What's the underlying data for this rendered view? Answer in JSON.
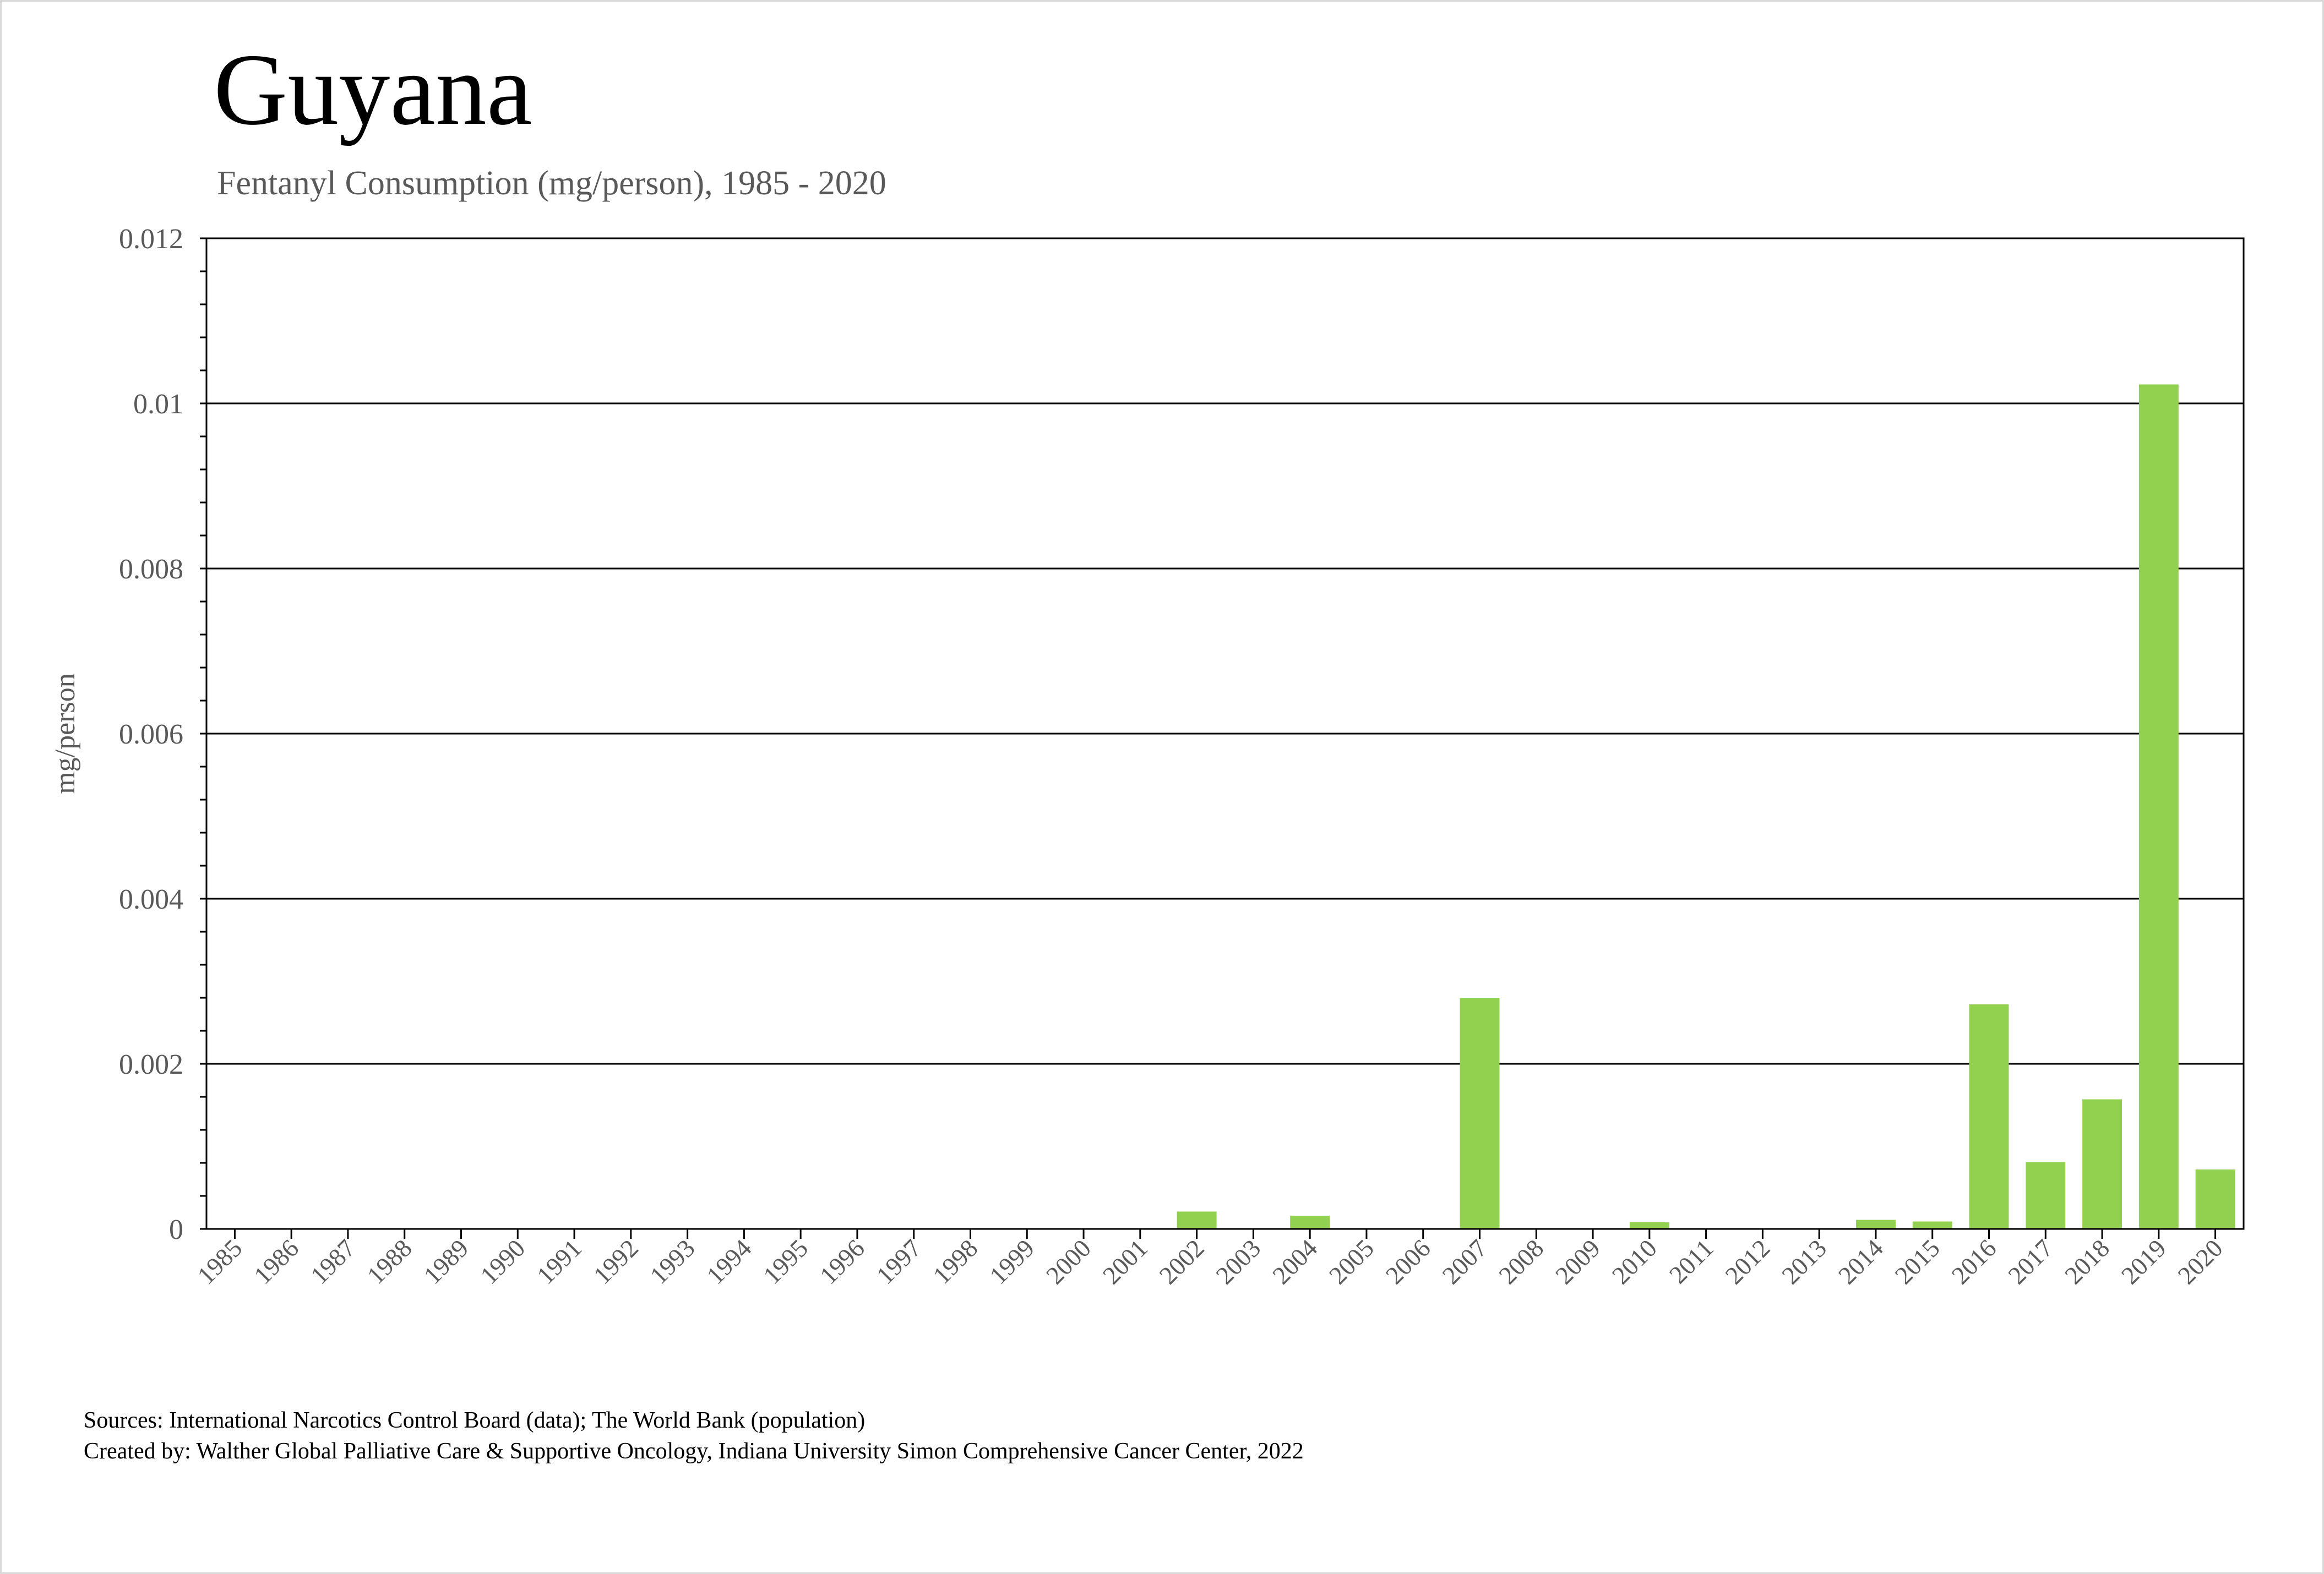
{
  "header": {
    "title": "Guyana",
    "subtitle": "Fentanyl Consumption (mg/person), 1985 - 2020"
  },
  "footer": {
    "sources": "Sources: International Narcotics Control Board (data); The World Bank (population)",
    "created_by": "Created by: Walther Global Palliative Care & Supportive Oncology, Indiana University Simon Comprehensive Cancer Center, 2022"
  },
  "colors": {
    "bar": "#92d050",
    "grid": "#000000",
    "axis_text": "#595959"
  },
  "chart_data": {
    "type": "bar",
    "title": "Guyana",
    "subtitle": "Fentanyl Consumption (mg/person), 1985 - 2020",
    "xlabel": "",
    "ylabel": "mg/person",
    "ylim": [
      0,
      0.012
    ],
    "yticks": [
      0,
      0.002,
      0.004,
      0.006,
      0.008,
      0.01,
      0.012
    ],
    "ytick_labels": [
      "0",
      "0.002",
      "0.004",
      "0.006",
      "0.008",
      "0.01",
      "0.012"
    ],
    "grid": true,
    "legend": "none",
    "categories": [
      "1985",
      "1986",
      "1987",
      "1988",
      "1989",
      "1990",
      "1991",
      "1992",
      "1993",
      "1994",
      "1995",
      "1996",
      "1997",
      "1998",
      "1999",
      "2000",
      "2001",
      "2002",
      "2003",
      "2004",
      "2005",
      "2006",
      "2007",
      "2008",
      "2009",
      "2010",
      "2011",
      "2012",
      "2013",
      "2014",
      "2015",
      "2016",
      "2017",
      "2018",
      "2019",
      "2020"
    ],
    "values": [
      0,
      0,
      0,
      0,
      0,
      0,
      0,
      0,
      0,
      0,
      0,
      0,
      0,
      0,
      0,
      0,
      0,
      0.00021,
      1e-05,
      0.00016,
      0,
      0,
      0.0028,
      0,
      0,
      8e-05,
      0,
      0,
      0,
      0.00011,
      9e-05,
      0.00272,
      0.00081,
      0.00157,
      0.01023,
      0.00072
    ]
  }
}
